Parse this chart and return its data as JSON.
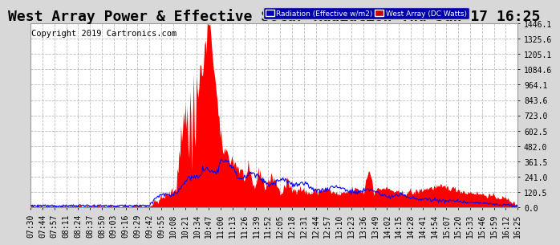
{
  "title": "West Array Power & Effective Solar Radiation Thu Jan 17 16:25",
  "copyright": "Copyright 2019 Cartronics.com",
  "legend_radiation": "Radiation (Effective w/m2)",
  "legend_west": "West Array (DC Watts)",
  "yticks": [
    0.0,
    120.5,
    241.0,
    361.5,
    482.0,
    602.5,
    723.0,
    843.6,
    964.1,
    1084.6,
    1205.1,
    1325.6,
    1446.1
  ],
  "ymax": 1446.1,
  "bg_color": "#d8d8d8",
  "plot_bg": "#ffffff",
  "grid_color": "#bbbbbb",
  "red_color": "#ff0000",
  "blue_color": "#0000ff",
  "title_fontsize": 13,
  "tick_fontsize": 7,
  "copyright_fontsize": 7.5,
  "xtick_labels": [
    "07:30",
    "07:44",
    "07:57",
    "08:11",
    "08:24",
    "08:37",
    "08:50",
    "09:03",
    "09:16",
    "09:29",
    "09:42",
    "09:55",
    "10:08",
    "10:21",
    "10:34",
    "10:47",
    "11:00",
    "11:13",
    "11:26",
    "11:39",
    "11:52",
    "12:05",
    "12:18",
    "12:31",
    "12:44",
    "12:57",
    "13:10",
    "13:23",
    "13:36",
    "13:49",
    "14:02",
    "14:15",
    "14:28",
    "14:41",
    "14:54",
    "15:07",
    "15:20",
    "15:33",
    "15:46",
    "15:59",
    "16:12",
    "16:25"
  ]
}
